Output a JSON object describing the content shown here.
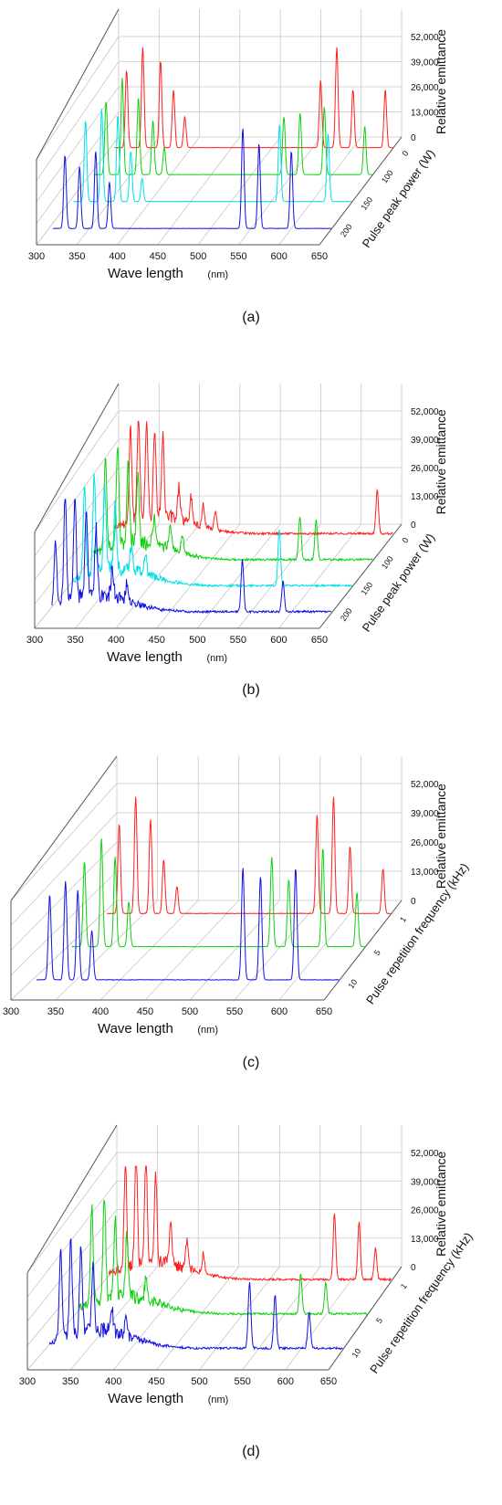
{
  "chart_data": [
    {
      "panel_label": "a",
      "type": "line",
      "xlabel": "Wave length",
      "xunit": "(nm)",
      "x_ticks": [
        300,
        350,
        400,
        450,
        500,
        550,
        600,
        650
      ],
      "xlim": [
        300,
        650
      ],
      "zlabel": "Relative emittance",
      "z_ticks": [
        "0",
        "13,000",
        "26,000",
        "39,000",
        "52,000"
      ],
      "zlim": [
        0,
        52000
      ],
      "ylabel": "Pulse peak power",
      "yunit": "(W)",
      "y_ticks": [
        "0",
        "100",
        "150",
        "200"
      ],
      "colors": [
        "#ff2020",
        "#10d010",
        "#00e0e8",
        "#1010e0"
      ],
      "series": [
        {
          "depth": "0",
          "color": "#ff2020",
          "peaks": [
            [
              320,
              40000
            ],
            [
              340,
              52000
            ],
            [
              362,
              45000
            ],
            [
              378,
              30000
            ],
            [
              392,
              16000
            ],
            [
              560,
              35000
            ],
            [
              580,
              52000
            ],
            [
              600,
              30000
            ],
            [
              640,
              30000
            ]
          ],
          "noise": 0.02
        },
        {
          "depth": "100",
          "color": "#10d010",
          "peaks": [
            [
              320,
              38000
            ],
            [
              340,
              50000
            ],
            [
              360,
              40000
            ],
            [
              378,
              28000
            ],
            [
              392,
              14000
            ],
            [
              540,
              30000
            ],
            [
              560,
              32000
            ],
            [
              590,
              35000
            ],
            [
              640,
              25000
            ]
          ],
          "noise": 0.02
        },
        {
          "depth": "150",
          "color": "#00e0e8",
          "peaks": [
            [
              320,
              42000
            ],
            [
              340,
              48000
            ],
            [
              360,
              45000
            ],
            [
              376,
              26000
            ],
            [
              390,
              12000
            ],
            [
              560,
              40000
            ],
            [
              620,
              35000
            ]
          ],
          "noise": 0.02
        },
        {
          "depth": "200",
          "color": "#1010e0",
          "peaks": [
            [
              320,
              38000
            ],
            [
              338,
              32000
            ],
            [
              358,
              40000
            ],
            [
              375,
              24000
            ],
            [
              540,
              52000
            ],
            [
              560,
              44000
            ],
            [
              600,
              40000
            ]
          ],
          "noise": 0.02
        }
      ]
    },
    {
      "panel_label": "b",
      "type": "line",
      "xlabel": "Wave length",
      "xunit": "(nm)",
      "x_ticks": [
        300,
        350,
        400,
        450,
        500,
        550,
        600,
        650
      ],
      "xlim": [
        300,
        650
      ],
      "zlabel": "Relative emittance",
      "z_ticks": [
        "0",
        "13,000",
        "26,000",
        "39,000",
        "52,000"
      ],
      "zlim": [
        0,
        52000
      ],
      "ylabel": "Pulse peak power",
      "yunit": "(W)",
      "y_ticks": [
        "0",
        "100",
        "150",
        "200"
      ],
      "colors": [
        "#ff2020",
        "#10d010",
        "#00e0e8",
        "#1010e0"
      ],
      "series": [
        {
          "depth": "0",
          "color": "#ff2020",
          "peaks": [
            [
              325,
              44000
            ],
            [
              335,
              50000
            ],
            [
              345,
              46000
            ],
            [
              355,
              40000
            ],
            [
              365,
              36000
            ],
            [
              385,
              15000
            ],
            [
              400,
              12000
            ],
            [
              415,
              10000
            ],
            [
              430,
              8000
            ],
            [
              630,
              20000
            ]
          ],
          "noise": 0.12
        },
        {
          "depth": "100",
          "color": "#10d010",
          "peaks": [
            [
              320,
              42000
            ],
            [
              335,
              48000
            ],
            [
              348,
              36000
            ],
            [
              360,
              30000
            ],
            [
              380,
              12000
            ],
            [
              400,
              9000
            ],
            [
              415,
              8000
            ],
            [
              560,
              20000
            ],
            [
              580,
              18000
            ]
          ],
          "noise": 0.12
        },
        {
          "depth": "150",
          "color": "#00e0e8",
          "peaks": [
            [
              320,
              42000
            ],
            [
              332,
              46000
            ],
            [
              345,
              38000
            ],
            [
              358,
              30000
            ],
            [
              378,
              12000
            ],
            [
              395,
              9000
            ],
            [
              560,
              26000
            ]
          ],
          "noise": 0.12
        },
        {
          "depth": "200",
          "color": "#1010e0",
          "peaks": [
            [
              310,
              30000
            ],
            [
              322,
              50000
            ],
            [
              334,
              46000
            ],
            [
              348,
              38000
            ],
            [
              360,
              30000
            ],
            [
              380,
              12000
            ],
            [
              398,
              8000
            ],
            [
              540,
              24000
            ],
            [
              590,
              14000
            ]
          ],
          "noise": 0.12
        }
      ]
    },
    {
      "panel_label": "c",
      "type": "line",
      "xlabel": "Wave length",
      "xunit": "(nm)",
      "x_ticks": [
        300,
        350,
        400,
        450,
        500,
        550,
        600,
        650
      ],
      "xlim": [
        300,
        650
      ],
      "zlabel": "Relative emittance",
      "z_ticks": [
        "0",
        "13,000",
        "26,000",
        "39,000",
        "52,000"
      ],
      "zlim": [
        0,
        52000
      ],
      "ylabel": "Pulse repetition frequency",
      "yunit": "(kHz)",
      "y_ticks": [
        "1",
        "5",
        "10"
      ],
      "colors": [
        "#ff2020",
        "#10d010",
        "#1010e0"
      ],
      "series": [
        {
          "depth": "1",
          "color": "#ff2020",
          "peaks": [
            [
              320,
              40000
            ],
            [
              340,
              52000
            ],
            [
              358,
              42000
            ],
            [
              374,
              24000
            ],
            [
              390,
              12000
            ],
            [
              560,
              44000
            ],
            [
              580,
              52000
            ],
            [
              600,
              30000
            ],
            [
              640,
              20000
            ]
          ],
          "noise": 0.03
        },
        {
          "depth": "5",
          "color": "#10d010",
          "peaks": [
            [
              320,
              38000
            ],
            [
              340,
              48000
            ],
            [
              356,
              40000
            ],
            [
              372,
              20000
            ],
            [
              540,
              40000
            ],
            [
              560,
              30000
            ],
            [
              600,
              44000
            ],
            [
              640,
              24000
            ]
          ],
          "noise": 0.03
        },
        {
          "depth": "10",
          "color": "#1010e0",
          "peaks": [
            [
              320,
              38000
            ],
            [
              338,
              44000
            ],
            [
              352,
              40000
            ],
            [
              368,
              22000
            ],
            [
              540,
              50000
            ],
            [
              560,
              46000
            ],
            [
              600,
              50000
            ]
          ],
          "noise": 0.03
        }
      ]
    },
    {
      "panel_label": "d",
      "type": "line",
      "xlabel": "Wave length",
      "xunit": "(nm)",
      "x_ticks": [
        300,
        350,
        400,
        450,
        500,
        550,
        600,
        650
      ],
      "xlim": [
        300,
        650
      ],
      "zlabel": "Relative emittance",
      "z_ticks": [
        "0",
        "13,000",
        "26,000",
        "39,000",
        "52,000"
      ],
      "zlim": [
        0,
        52000
      ],
      "ylabel": "Pulse repetition frequency",
      "yunit": "(kHz)",
      "y_ticks": [
        "1",
        "5",
        "10"
      ],
      "colors": [
        "#ff2020",
        "#10d010",
        "#1010e0"
      ],
      "series": [
        {
          "depth": "1",
          "color": "#ff2020",
          "peaks": [
            [
              325,
              48000
            ],
            [
              338,
              52000
            ],
            [
              350,
              50000
            ],
            [
              362,
              40000
            ],
            [
              380,
              18000
            ],
            [
              400,
              12000
            ],
            [
              420,
              9000
            ],
            [
              580,
              30000
            ],
            [
              610,
              26000
            ],
            [
              630,
              14000
            ]
          ],
          "noise": 0.12
        },
        {
          "depth": "5",
          "color": "#10d010",
          "peaks": [
            [
              320,
              44000
            ],
            [
              335,
              48000
            ],
            [
              348,
              36000
            ],
            [
              362,
              28000
            ],
            [
              385,
              10000
            ],
            [
              570,
              18000
            ],
            [
              600,
              14000
            ]
          ],
          "noise": 0.12
        },
        {
          "depth": "10",
          "color": "#1010e0",
          "peaks": [
            [
              318,
              40000
            ],
            [
              330,
              44000
            ],
            [
              342,
              40000
            ],
            [
              356,
              30000
            ],
            [
              378,
              12000
            ],
            [
              395,
              9000
            ],
            [
              540,
              30000
            ],
            [
              570,
              24000
            ],
            [
              610,
              16000
            ]
          ],
          "noise": 0.12
        }
      ]
    }
  ]
}
